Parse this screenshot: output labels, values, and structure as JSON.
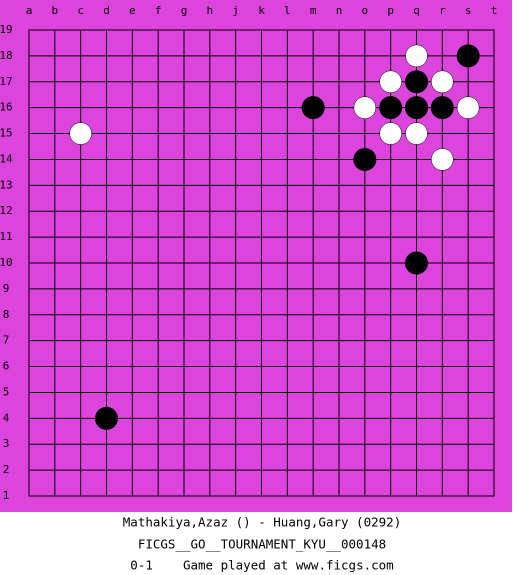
{
  "board": {
    "columns": [
      "a",
      "b",
      "c",
      "d",
      "e",
      "f",
      "g",
      "h",
      "j",
      "k",
      "l",
      "m",
      "n",
      "o",
      "p",
      "q",
      "r",
      "s",
      "t"
    ],
    "rows": [
      19,
      18,
      17,
      16,
      15,
      14,
      13,
      12,
      11,
      10,
      9,
      8,
      7,
      6,
      5,
      4,
      3,
      2,
      1
    ],
    "stones": [
      {
        "col": "q",
        "row": 18,
        "color": "white"
      },
      {
        "col": "s",
        "row": 18,
        "color": "black"
      },
      {
        "col": "p",
        "row": 17,
        "color": "white"
      },
      {
        "col": "q",
        "row": 17,
        "color": "black"
      },
      {
        "col": "r",
        "row": 17,
        "color": "white"
      },
      {
        "col": "m",
        "row": 16,
        "color": "black"
      },
      {
        "col": "o",
        "row": 16,
        "color": "white"
      },
      {
        "col": "p",
        "row": 16,
        "color": "black"
      },
      {
        "col": "q",
        "row": 16,
        "color": "black"
      },
      {
        "col": "r",
        "row": 16,
        "color": "black"
      },
      {
        "col": "s",
        "row": 16,
        "color": "white"
      },
      {
        "col": "c",
        "row": 15,
        "color": "white"
      },
      {
        "col": "p",
        "row": 15,
        "color": "white"
      },
      {
        "col": "q",
        "row": 15,
        "color": "white"
      },
      {
        "col": "o",
        "row": 14,
        "color": "black"
      },
      {
        "col": "r",
        "row": 14,
        "color": "white"
      },
      {
        "col": "q",
        "row": 10,
        "color": "black"
      },
      {
        "col": "d",
        "row": 4,
        "color": "black"
      }
    ]
  },
  "caption": {
    "players": "Mathakiya,Azaz () - Huang,Gary (0292)",
    "event": "FICGS__GO__TOURNAMENT_KYU__000148",
    "result": "0-1    Game played at www.ficgs.com"
  }
}
